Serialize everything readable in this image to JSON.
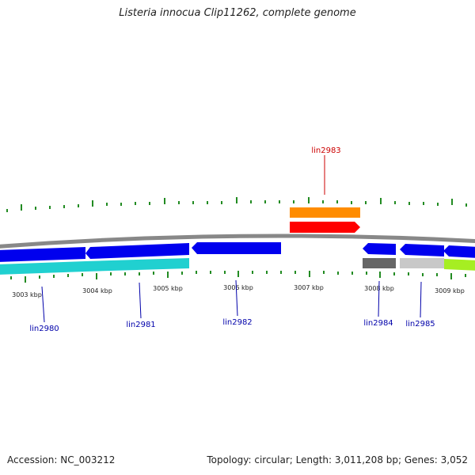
{
  "header": {
    "title": "Listeria innocua Clip11262, complete genome"
  },
  "footer": {
    "accession": "Accession: NC_003212",
    "topology": "Topology: circular; Length: 3,011,208 bp; Genes: 3,052"
  },
  "scale_labels": [
    "3003 kbp",
    "3004 kbp",
    "3005 kbp",
    "3006 kbp",
    "3007 kbp",
    "3008 kbp",
    "3009 kbp"
  ],
  "gene_labels": [
    "lin2980",
    "lin2981",
    "lin2982",
    "lin2983",
    "lin2984",
    "lin2985"
  ],
  "colors": {
    "cds_forward": "#ff0000",
    "cds_reverse": "#0000ee",
    "rna": "#ff8c00",
    "backbone": "#888888",
    "tick": "#228b22",
    "label_forward": "#cc0000",
    "label_reverse": "#0000aa",
    "cyan": "#20d0d0",
    "gray_dark": "#666666",
    "gray_light": "#c8c8c8",
    "lime": "#a6ee22"
  }
}
